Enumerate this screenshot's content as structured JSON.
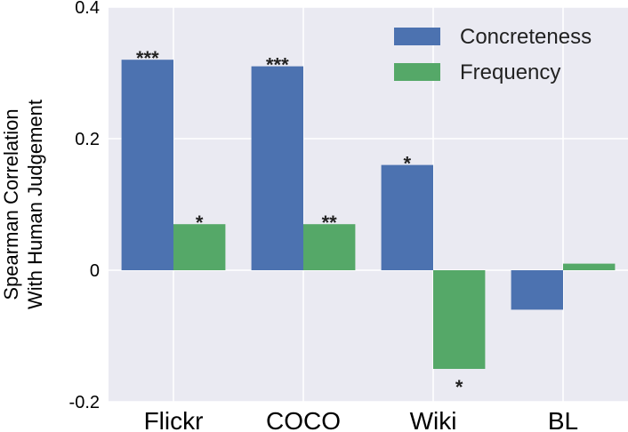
{
  "chart_data": {
    "type": "bar",
    "categories": [
      "Flickr",
      "COCO",
      "Wiki",
      "BL"
    ],
    "series": [
      {
        "name": "Concreteness",
        "color": "#4C72B0",
        "values": [
          0.32,
          0.31,
          0.16,
          -0.06
        ],
        "significance": [
          "***",
          "***",
          "*",
          ""
        ]
      },
      {
        "name": "Frequency",
        "color": "#55A868",
        "values": [
          0.07,
          0.07,
          -0.15,
          0.01
        ],
        "significance": [
          "*",
          "**",
          "*",
          ""
        ]
      }
    ],
    "title": "",
    "xlabel": "",
    "ylabel_lines": [
      "Spearman Correlation",
      "With Human Judgement"
    ],
    "ylim": [
      -0.2,
      0.4
    ],
    "yticks": [
      -0.2,
      0,
      0.2,
      0.4
    ],
    "ytick_labels": [
      "-0.2",
      "0",
      "0.2",
      "0.4"
    ],
    "grid": true,
    "background": "#EAEAF2",
    "legend_position": "top-right"
  }
}
